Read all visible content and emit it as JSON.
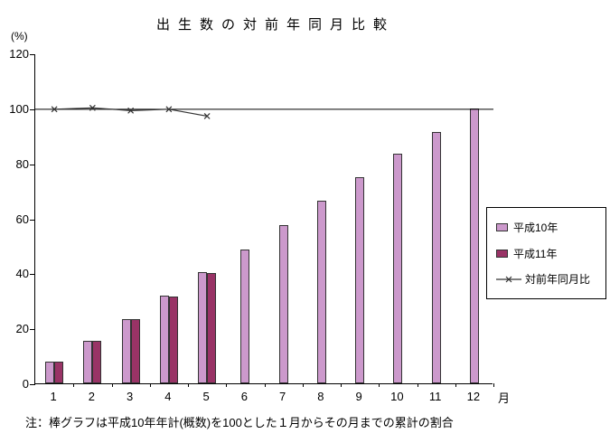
{
  "title": "出生数の対前年同月比較",
  "note": "注：棒グラフは平成10年年計(概数)を100とした１月からその月までの累計の割合",
  "axis": {
    "y_unit": "(%)",
    "x_unit": "月"
  },
  "legend": [
    {
      "label": "平成10年",
      "type": "bar",
      "color": "#cc99cc"
    },
    {
      "label": "平成11年",
      "type": "bar",
      "color": "#993366"
    },
    {
      "label": "対前年同月比",
      "type": "line",
      "color": "#333333"
    }
  ],
  "chart_data": {
    "type": "bar",
    "title": "出生数の対前年同月比較",
    "ylabel": "(%)",
    "xlabel": "月",
    "ylim": [
      0,
      120
    ],
    "yticks": [
      0,
      20,
      40,
      60,
      80,
      100,
      120
    ],
    "grid": false,
    "legend_position": "right",
    "reference_line": 100,
    "categories": [
      1,
      2,
      3,
      4,
      5,
      6,
      7,
      8,
      9,
      10,
      11,
      12
    ],
    "series": [
      {
        "name": "平成10年",
        "key": "h10",
        "type": "bar",
        "color": "#cc99cc",
        "values": [
          8,
          15.5,
          23.5,
          32,
          40.5,
          48.5,
          57.5,
          66.5,
          75,
          83.5,
          91.5,
          100
        ]
      },
      {
        "name": "平成11年",
        "key": "h11",
        "type": "bar",
        "color": "#993366",
        "values": [
          8,
          15.5,
          23.5,
          31.5,
          40,
          null,
          null,
          null,
          null,
          null,
          null,
          null
        ]
      },
      {
        "name": "対前年同月比",
        "key": "yoy",
        "type": "line",
        "color": "#333333",
        "marker": "x",
        "values": [
          100,
          100.5,
          99.5,
          100,
          97.5,
          null,
          null,
          null,
          null,
          null,
          null,
          null
        ]
      }
    ]
  }
}
